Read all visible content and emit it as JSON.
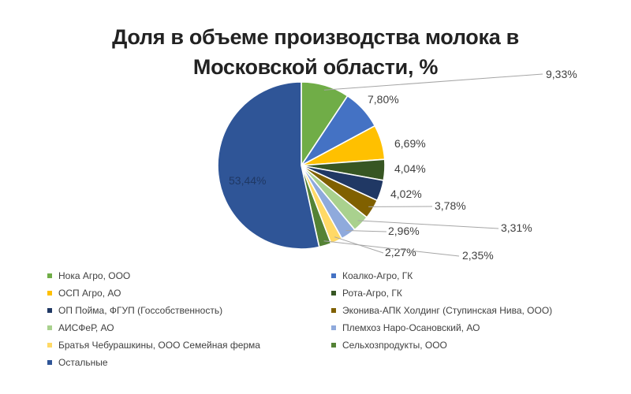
{
  "chart_data": {
    "type": "pie",
    "title": "Доля в объеме производства молока в Московской области, %",
    "slices": [
      {
        "name": "Нока Агро, ООО",
        "value": 9.33,
        "label": "9,33%",
        "color": "#70ad47"
      },
      {
        "name": "Коалко-Агро, ГК",
        "value": 7.8,
        "label": "7,80%",
        "color": "#4472c4"
      },
      {
        "name": "ОСП Агро, АО",
        "value": 6.69,
        "label": "6,69%",
        "color": "#ffc000"
      },
      {
        "name": "Рота-Агро, ГК",
        "value": 4.04,
        "label": "4,04%",
        "color": "#375623"
      },
      {
        "name": "ОП Пойма, ФГУП (Госсобственность)",
        "value": 4.02,
        "label": "4,02%",
        "color": "#203864"
      },
      {
        "name": "Эконива-АПК Холдинг (Ступинская Нива, ООО)",
        "value": 3.78,
        "label": "3,78%",
        "color": "#806000"
      },
      {
        "name": "АИСФеР, АО",
        "value": 3.31,
        "label": "3,31%",
        "color": "#a9d18e"
      },
      {
        "name": "Племхоз Наро-Осановский, АО",
        "value": 2.96,
        "label": "2,96%",
        "color": "#8faadc"
      },
      {
        "name": "Братья Чебурашкины, ООО Семейная ферма",
        "value": 2.27,
        "label": "2,27%",
        "color": "#ffd966"
      },
      {
        "name": "Сельхозпродукты, ООО",
        "value": 2.35,
        "label": "2,35%",
        "color": "#548235"
      },
      {
        "name": "Остальные",
        "value": 53.44,
        "label": "53,44%",
        "color": "#2f5597"
      }
    ],
    "legend_position": "bottom"
  }
}
